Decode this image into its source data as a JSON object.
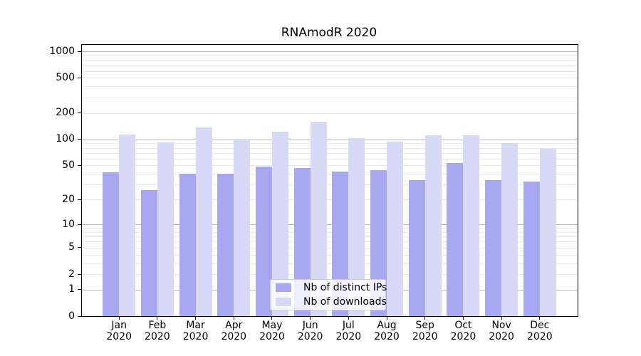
{
  "chart_data": {
    "type": "bar",
    "title": "RNAmodR 2020",
    "categories": [
      "Jan",
      "Feb",
      "Mar",
      "Apr",
      "May",
      "Jun",
      "Jul",
      "Aug",
      "Sep",
      "Oct",
      "Nov",
      "Dec"
    ],
    "year": "2020",
    "series": [
      {
        "name": "Nb of distinct IPs",
        "color": "#a8a8f0",
        "values": [
          42,
          26,
          40,
          40,
          49,
          47,
          43,
          44,
          34,
          54,
          34,
          33
        ]
      },
      {
        "name": "Nb of downloads",
        "color": "#d8d8f7",
        "values": [
          114,
          93,
          138,
          102,
          122,
          160,
          103,
          95,
          112,
          112,
          90,
          78
        ]
      }
    ],
    "y_ticks": [
      0,
      1,
      2,
      5,
      10,
      20,
      50,
      100,
      200,
      500,
      1000
    ],
    "y_scale": "log10(value+1)",
    "ylim": [
      0,
      1200
    ],
    "xlabel": "",
    "ylabel": "",
    "grid": {
      "major_color": "#b8b8b8",
      "minor_color": "#e8e8e8"
    },
    "legend_position": "lower-center"
  }
}
